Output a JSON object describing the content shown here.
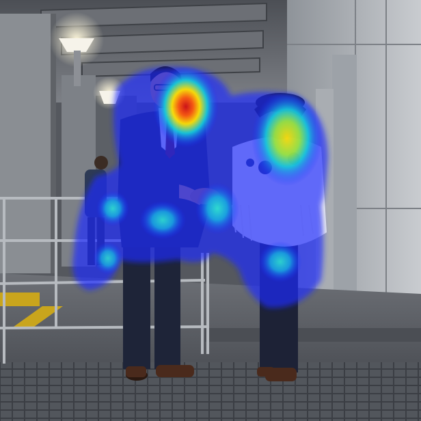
{
  "image": {
    "kind": "photo-with-attention-heatmap",
    "subjects": [
      "man-in-dark-suit",
      "woman-in-white-fringed-blouse-and-black-hat"
    ],
    "setting": "covered-station-platform",
    "overlay": "attention-heatmap"
  },
  "colors": {
    "heat_low": "#1a2bff",
    "heat_mid": "#16c8d8",
    "heat_high": "#ffe100",
    "heat_peak": "#d41010"
  }
}
